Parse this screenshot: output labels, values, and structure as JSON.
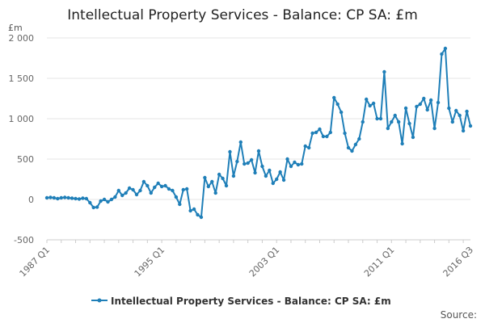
{
  "chart_data": {
    "type": "line",
    "title": "Intellectual Property Services - Balance: CP SA: £m",
    "unit_label": "£m",
    "ylim": [
      -500,
      2000
    ],
    "y_ticks": [
      -500,
      0,
      500,
      1000,
      1500,
      2000
    ],
    "y_tick_labels": [
      "-500",
      "0",
      "500",
      "1 000",
      "1 500",
      "2 000"
    ],
    "x_tick_labels": [
      "1987 Q1",
      "1995 Q1",
      "2003 Q1",
      "2011 Q1",
      "2016 Q3"
    ],
    "x_tick_index": [
      0,
      32,
      64,
      96,
      118
    ],
    "source_label": "Source:",
    "series": [
      {
        "name": "Intellectual Property Services - Balance: CP SA: £m",
        "color": "#1f7fb8",
        "start": "1987 Q1",
        "values": [
          20,
          25,
          20,
          10,
          20,
          25,
          20,
          15,
          10,
          5,
          15,
          10,
          -40,
          -100,
          -95,
          -20,
          0,
          -30,
          0,
          30,
          110,
          50,
          80,
          140,
          120,
          60,
          110,
          220,
          170,
          80,
          150,
          200,
          160,
          170,
          130,
          110,
          30,
          -60,
          120,
          130,
          -140,
          -120,
          -190,
          -220,
          270,
          160,
          220,
          80,
          310,
          260,
          170,
          590,
          290,
          470,
          710,
          440,
          450,
          490,
          330,
          600,
          410,
          290,
          360,
          200,
          250,
          340,
          240,
          500,
          410,
          460,
          430,
          440,
          660,
          640,
          820,
          830,
          870,
          780,
          780,
          830,
          1260,
          1180,
          1080,
          820,
          640,
          600,
          680,
          750,
          960,
          1240,
          1160,
          1190,
          1000,
          1000,
          1580,
          880,
          960,
          1040,
          960,
          690,
          1130,
          940,
          770,
          1150,
          1180,
          1250,
          1110,
          1230,
          880,
          1200,
          1800,
          1870,
          1130,
          960,
          1100,
          1040,
          850,
          1090,
          910
        ]
      }
    ]
  }
}
